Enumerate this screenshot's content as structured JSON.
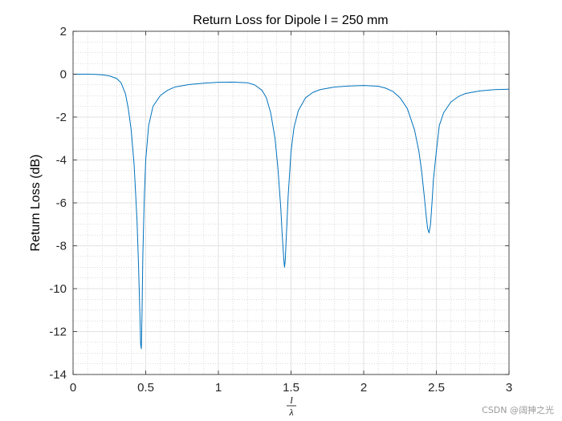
{
  "chart_data": {
    "type": "line",
    "title": "Return Loss for Dipole l = 250 mm",
    "ylabel": "Return Loss (dB)",
    "xlabel_numerator": "l",
    "xlabel_denominator": "λ",
    "xlim": [
      0,
      3
    ],
    "ylim": [
      -14,
      2
    ],
    "xticks": [
      0,
      0.5,
      1,
      1.5,
      2,
      2.5,
      3
    ],
    "xtick_labels": [
      "0",
      "0.5",
      "1",
      "1.5",
      "2",
      "2.5",
      "3"
    ],
    "yticks": [
      2,
      0,
      -2,
      -4,
      -6,
      -8,
      -10,
      -12,
      -14
    ],
    "ytick_labels": [
      "2",
      "0",
      "-2",
      "-4",
      "-6",
      "-8",
      "-10",
      "-12",
      "-14"
    ],
    "grid": true,
    "minor_grid": true,
    "series": [
      {
        "color": "#0072BD",
        "x": [
          0,
          0.05,
          0.1,
          0.15,
          0.2,
          0.25,
          0.3,
          0.33,
          0.36,
          0.38,
          0.4,
          0.42,
          0.44,
          0.45,
          0.46,
          0.465,
          0.47,
          0.475,
          0.48,
          0.49,
          0.5,
          0.52,
          0.55,
          0.6,
          0.65,
          0.7,
          0.8,
          0.9,
          1.0,
          1.1,
          1.2,
          1.25,
          1.3,
          1.33,
          1.36,
          1.39,
          1.41,
          1.43,
          1.44,
          1.45,
          1.455,
          1.46,
          1.47,
          1.48,
          1.5,
          1.52,
          1.55,
          1.6,
          1.65,
          1.7,
          1.8,
          1.9,
          2.0,
          2.1,
          2.15,
          2.2,
          2.25,
          2.3,
          2.35,
          2.38,
          2.4,
          2.42,
          2.43,
          2.44,
          2.45,
          2.46,
          2.47,
          2.48,
          2.5,
          2.52,
          2.55,
          2.6,
          2.65,
          2.7,
          2.8,
          2.9,
          3.0
        ],
        "y": [
          0,
          0,
          0,
          -0.01,
          -0.03,
          -0.08,
          -0.2,
          -0.4,
          -0.9,
          -1.6,
          -2.6,
          -4.2,
          -6.8,
          -8.8,
          -11.2,
          -12.6,
          -12.8,
          -11.0,
          -8.5,
          -5.8,
          -4.0,
          -2.4,
          -1.5,
          -1.0,
          -0.75,
          -0.6,
          -0.48,
          -0.42,
          -0.38,
          -0.37,
          -0.4,
          -0.5,
          -0.75,
          -1.1,
          -1.8,
          -3.0,
          -4.4,
          -6.3,
          -7.6,
          -8.6,
          -9.0,
          -8.7,
          -7.2,
          -5.7,
          -3.6,
          -2.5,
          -1.7,
          -1.1,
          -0.85,
          -0.72,
          -0.6,
          -0.55,
          -0.53,
          -0.56,
          -0.65,
          -0.8,
          -1.1,
          -1.6,
          -2.6,
          -3.6,
          -4.6,
          -5.9,
          -6.6,
          -7.2,
          -7.4,
          -7.0,
          -6.0,
          -4.9,
          -3.6,
          -2.4,
          -1.8,
          -1.3,
          -1.05,
          -0.9,
          -0.78,
          -0.72,
          -0.7
        ]
      }
    ]
  },
  "watermark": "CSDN @阔抻之光"
}
